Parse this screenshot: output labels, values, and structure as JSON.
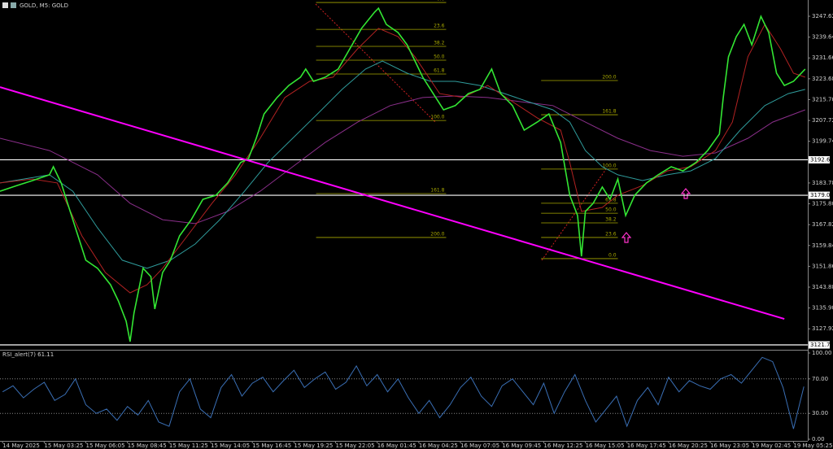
{
  "chart_data": [
    {
      "type": "line",
      "title": "GOLD, M5:  GOLD",
      "xlim": [
        -2,
        619
      ],
      "ylim": [
        3120.52,
        3253.85
      ],
      "yticks": [
        3247.62,
        3239.64,
        3231.66,
        3223.68,
        {
          "value": 3215.7,
          "label": "3215.70"
        },
        3207.72,
        3199.74,
        3183.78,
        {
          "value": 3175.8,
          "label": "3175.80"
        },
        3167.82,
        3159.84,
        3151.86,
        3143.88,
        {
          "value": 3135.9,
          "label": "3135.90"
        },
        3127.92
      ],
      "levels": [
        3192.65,
        3179.06,
        3121.76
      ],
      "series": [
        {
          "color": "#8b2f8b",
          "x": [
            -2,
            36,
            73,
            98,
            123,
            148,
            173,
            198,
            223,
            248,
            273,
            298,
            323,
            348,
            373,
            398,
            423,
            448,
            473,
            498,
            523,
            548,
            573,
            592,
            617
          ],
          "values": [
            3200.9,
            3196.2,
            3186.9,
            3176.0,
            3169.7,
            3168.2,
            3172.9,
            3180.6,
            3190.0,
            3199.3,
            3207.1,
            3213.4,
            3216.5,
            3217.1,
            3216.5,
            3214.9,
            3213.4,
            3207.1,
            3200.9,
            3196.2,
            3194.0,
            3195.3,
            3200.9,
            3207.1,
            3211.8
          ]
        },
        {
          "color": "#2f9c9c",
          "x": [
            -2,
            36,
            54,
            73,
            92,
            111,
            129,
            148,
            167,
            186,
            204,
            223,
            242,
            261,
            279,
            292,
            311,
            329,
            348,
            367,
            386,
            404,
            423,
            436,
            448,
            461,
            473,
            492,
            511,
            529,
            548,
            567,
            586,
            604,
            617
          ],
          "values": [
            3183.8,
            3186.9,
            3180.6,
            3166.6,
            3154.2,
            3151.1,
            3154.2,
            3160.4,
            3169.7,
            3180.6,
            3191.6,
            3200.9,
            3210.2,
            3219.6,
            3227.4,
            3230.5,
            3225.8,
            3222.7,
            3222.7,
            3221.1,
            3218.0,
            3214.9,
            3211.8,
            3207.1,
            3196.2,
            3190.0,
            3186.9,
            3184.7,
            3186.9,
            3188.4,
            3193.1,
            3204.0,
            3213.4,
            3218.0,
            3219.6
          ]
        },
        {
          "color": "#b22222",
          "x": [
            -2,
            23,
            42,
            61,
            79,
            98,
            111,
            123,
            142,
            161,
            179,
            198,
            217,
            236,
            254,
            273,
            289,
            304,
            317,
            336,
            354,
            373,
            392,
            411,
            429,
            436,
            445,
            461,
            473,
            492,
            511,
            529,
            548,
            561,
            573,
            586,
            598,
            608,
            617
          ],
          "values": [
            3183.8,
            3185.3,
            3183.8,
            3163.5,
            3149.5,
            3141.7,
            3144.8,
            3151.1,
            3163.5,
            3176.0,
            3186.9,
            3200.9,
            3216.5,
            3222.7,
            3224.3,
            3235.2,
            3243.0,
            3239.8,
            3232.1,
            3218.0,
            3216.5,
            3221.1,
            3214.9,
            3208.7,
            3204.0,
            3191.6,
            3172.9,
            3174.4,
            3179.1,
            3182.8,
            3188.4,
            3190.0,
            3196.2,
            3207.1,
            3232.1,
            3244.5,
            3235.2,
            3225.8,
            3224.3
          ]
        },
        {
          "color": "#33e633",
          "x": [
            -2,
            11,
            23,
            36,
            39,
            45,
            51,
            58,
            64,
            73,
            83,
            89,
            95,
            98,
            101,
            108,
            114,
            117,
            123,
            129,
            136,
            145,
            154,
            164,
            173,
            183,
            189,
            195,
            201,
            211,
            220,
            229,
            233,
            239,
            248,
            258,
            267,
            276,
            286,
            289,
            295,
            304,
            311,
            317,
            323,
            329,
            339,
            348,
            358,
            367,
            376,
            383,
            392,
            401,
            411,
            420,
            429,
            436,
            442,
            445,
            448,
            454,
            461,
            467,
            473,
            479,
            486,
            495,
            504,
            514,
            523,
            533,
            542,
            551,
            554,
            558,
            564,
            570,
            576,
            583,
            589,
            595,
            601,
            608,
            617
          ],
          "values": [
            3180.6,
            3182.8,
            3184.7,
            3186.9,
            3190.0,
            3183.8,
            3174.4,
            3163.5,
            3154.2,
            3151.1,
            3144.8,
            3138.6,
            3130.8,
            3123.0,
            3133.9,
            3151.1,
            3147.9,
            3135.5,
            3149.5,
            3154.2,
            3163.5,
            3169.7,
            3177.5,
            3179.1,
            3183.8,
            3191.6,
            3193.1,
            3200.9,
            3210.2,
            3216.5,
            3221.1,
            3224.3,
            3227.4,
            3222.7,
            3224.3,
            3227.4,
            3235.2,
            3243.0,
            3249.2,
            3250.7,
            3244.5,
            3241.4,
            3236.7,
            3230.5,
            3224.3,
            3219.6,
            3211.8,
            3213.4,
            3218.0,
            3219.6,
            3227.4,
            3218.0,
            3213.4,
            3204.0,
            3207.1,
            3210.2,
            3199.3,
            3179.1,
            3171.3,
            3155.7,
            3172.9,
            3176.0,
            3182.2,
            3177.5,
            3185.3,
            3171.3,
            3179.1,
            3183.8,
            3186.9,
            3190.0,
            3188.4,
            3191.6,
            3196.2,
            3202.5,
            3216.5,
            3232.1,
            3239.8,
            3244.5,
            3236.7,
            3247.6,
            3241.4,
            3225.8,
            3221.1,
            3222.7,
            3227.4
          ]
        }
      ],
      "trendline": {
        "color": "#ff00ff",
        "x": [
          -2,
          601
        ],
        "values": [
          3220.5,
          3131.7
        ]
      },
      "fibonacci": [
        {
          "color": "#a8a800",
          "x": [
            241,
            341
          ],
          "levels": [
            {
              "label": "0.0",
              "value": 3252.9
            },
            {
              "label": "23.6",
              "value": 3242.6
            },
            {
              "label": "38.2",
              "value": 3236.1
            },
            {
              "label": "50.0",
              "value": 3230.8
            },
            {
              "label": "61.8",
              "value": 3225.5
            },
            {
              "label": "100.0",
              "value": 3207.7
            },
            {
              "label": "161.8",
              "value": 3179.7
            },
            {
              "label": "200.0",
              "value": 3162.9
            }
          ]
        },
        {
          "color": "#a8a800",
          "x": [
            414,
            473
          ],
          "levels": [
            {
              "label": "0.0",
              "value": 3154.8
            },
            {
              "label": "23.6",
              "value": 3162.9
            },
            {
              "label": "38.2",
              "value": 3168.5
            },
            {
              "label": "50.0",
              "value": 3172.2
            },
            {
              "label": "61.8",
              "value": 3176.0
            },
            {
              "label": "100.0",
              "value": 3189.1
            },
            {
              "label": "161.8",
              "value": 3209.9
            },
            {
              "label": "200.0",
              "value": 3223.0
            }
          ]
        }
      ]
    },
    {
      "type": "line",
      "title": "RSI_alert(7) 61.11",
      "xlim": [
        -2,
        619
      ],
      "ylim": [
        0,
        100
      ],
      "yticks": [
        {
          "value": 100,
          "label": "100.00"
        },
        {
          "value": 70,
          "label": "70.00"
        },
        {
          "value": 30,
          "label": "30.00"
        },
        {
          "value": 0,
          "label": "0.00"
        }
      ],
      "levels": [
        70,
        30
      ],
      "xticks": [
        {
          "value": 0,
          "label": "14 May 2025"
        },
        {
          "value": 32,
          "label": "15 May 03:25"
        },
        {
          "value": 64,
          "label": "15 May 06:05"
        },
        {
          "value": 96,
          "label": "15 May 08:45"
        },
        {
          "value": 128,
          "label": "15 May 11:25"
        },
        {
          "value": 160,
          "label": "15 May 14:05"
        },
        {
          "value": 192,
          "label": "15 May 16:45"
        },
        {
          "value": 224,
          "label": "15 May 19:25"
        },
        {
          "value": 256,
          "label": "15 May 22:05"
        },
        {
          "value": 288,
          "label": "16 May 01:45"
        },
        {
          "value": 320,
          "label": "16 May 04:25"
        },
        {
          "value": 352,
          "label": "16 May 07:05"
        },
        {
          "value": 384,
          "label": "16 May 09:45"
        },
        {
          "value": 416,
          "label": "16 May 12:25"
        },
        {
          "value": 448,
          "label": "16 May 15:05"
        },
        {
          "value": 480,
          "label": "16 May 17:45"
        },
        {
          "value": 512,
          "label": "16 May 20:25"
        },
        {
          "value": 544,
          "label": "16 May 23:05"
        },
        {
          "value": 576,
          "label": "19 May 02:45"
        },
        {
          "value": 608,
          "label": "19 May 05:25"
        }
      ],
      "series": [
        {
          "color": "#3a6fb5",
          "x": [
            0,
            8,
            16,
            24,
            32,
            40,
            48,
            56,
            64,
            72,
            80,
            88,
            96,
            104,
            112,
            120,
            128,
            136,
            144,
            152,
            160,
            168,
            176,
            184,
            192,
            200,
            208,
            216,
            224,
            232,
            240,
            248,
            256,
            264,
            272,
            280,
            288,
            296,
            304,
            312,
            320,
            328,
            336,
            344,
            352,
            360,
            368,
            376,
            384,
            392,
            400,
            408,
            416,
            424,
            432,
            440,
            448,
            456,
            464,
            472,
            480,
            488,
            496,
            504,
            512,
            520,
            528,
            536,
            544,
            552,
            560,
            568,
            576,
            584,
            592,
            600,
            608,
            616
          ],
          "values": [
            55,
            62,
            48,
            58,
            66,
            45,
            52,
            70,
            40,
            30,
            35,
            22,
            38,
            28,
            45,
            20,
            15,
            55,
            70,
            35,
            25,
            60,
            75,
            50,
            65,
            72,
            55,
            68,
            80,
            60,
            70,
            78,
            58,
            66,
            85,
            62,
            75,
            55,
            70,
            48,
            30,
            45,
            25,
            40,
            60,
            72,
            50,
            38,
            62,
            70,
            55,
            40,
            65,
            30,
            55,
            75,
            45,
            20,
            35,
            50,
            15,
            45,
            60,
            40,
            72,
            55,
            68,
            62,
            58,
            70,
            75,
            65,
            80,
            95,
            90,
            60,
            12,
            61.11
          ]
        }
      ]
    }
  ]
}
